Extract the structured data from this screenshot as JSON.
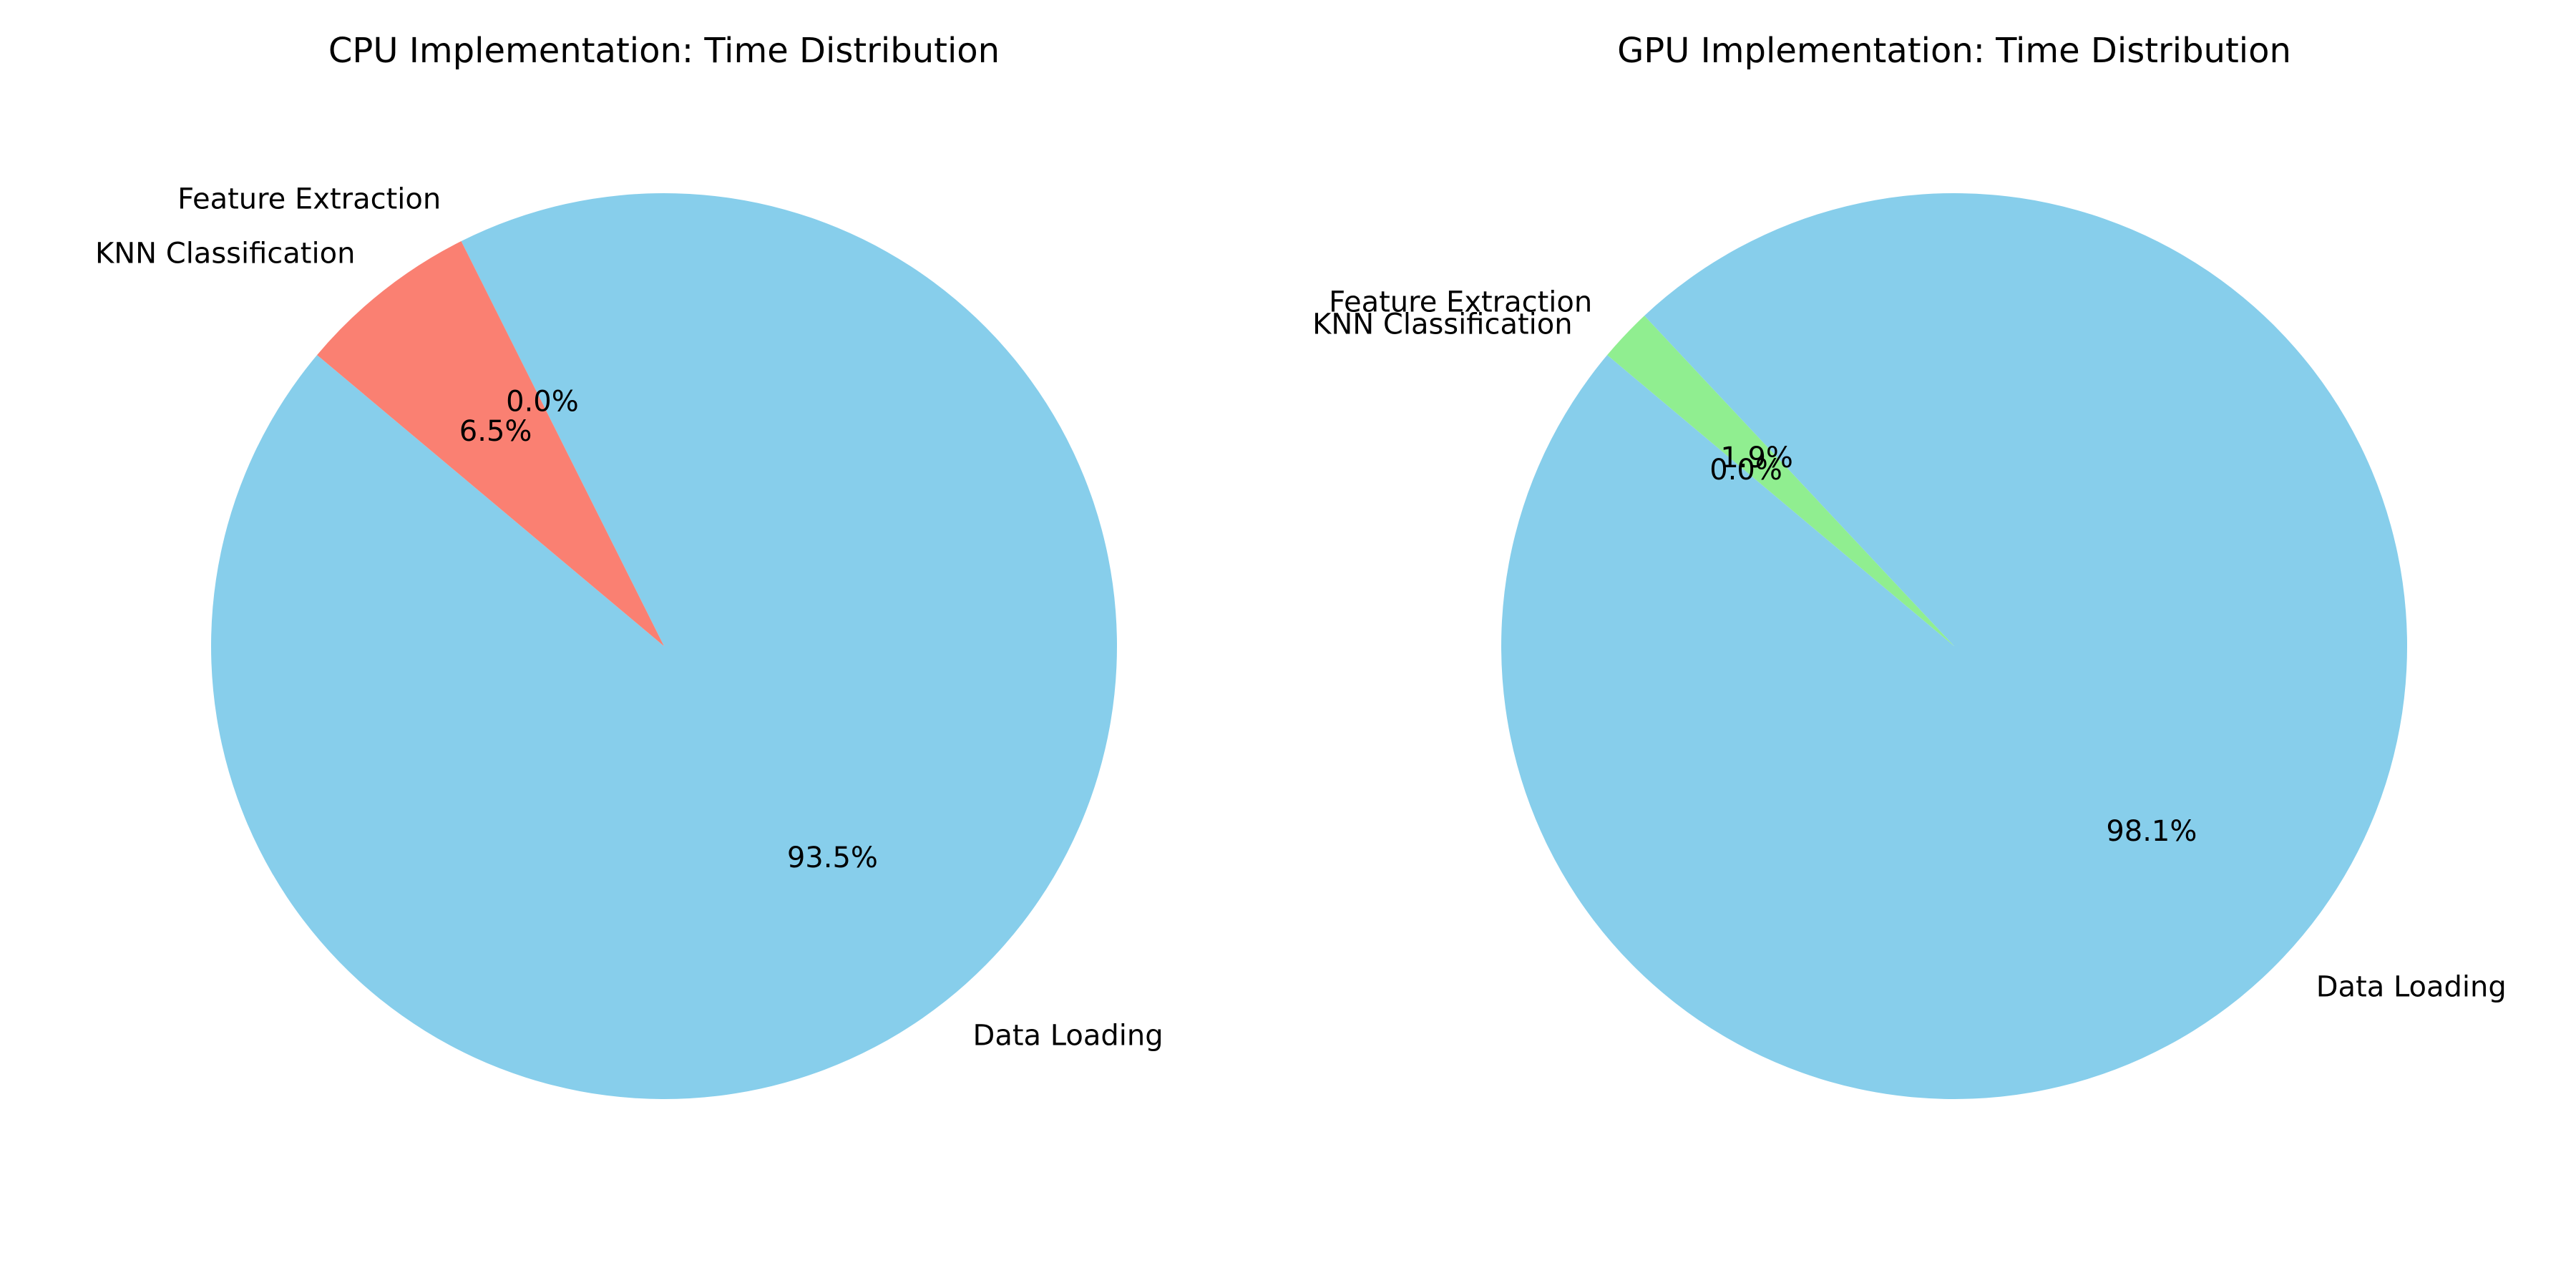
{
  "chart_data": [
    {
      "type": "pie",
      "title": "CPU Implementation: Time Distribution",
      "categories": [
        "Data Loading",
        "Feature Extraction",
        "KNN Classification"
      ],
      "values": [
        93.5,
        0.0,
        6.5
      ],
      "value_labels": [
        "93.5%",
        "0.0%",
        "6.5%"
      ],
      "colors": [
        "#87CEEB",
        "#90EE90",
        "#FA8072"
      ]
    },
    {
      "type": "pie",
      "title": "GPU Implementation: Time Distribution",
      "categories": [
        "Data Loading",
        "Feature Extraction",
        "KNN Classification"
      ],
      "values": [
        98.1,
        1.9,
        0.0
      ],
      "value_labels": [
        "98.1%",
        "1.9%",
        "0.0%"
      ],
      "colors": [
        "#87CEEB",
        "#90EE90",
        "#FA8072"
      ]
    }
  ]
}
